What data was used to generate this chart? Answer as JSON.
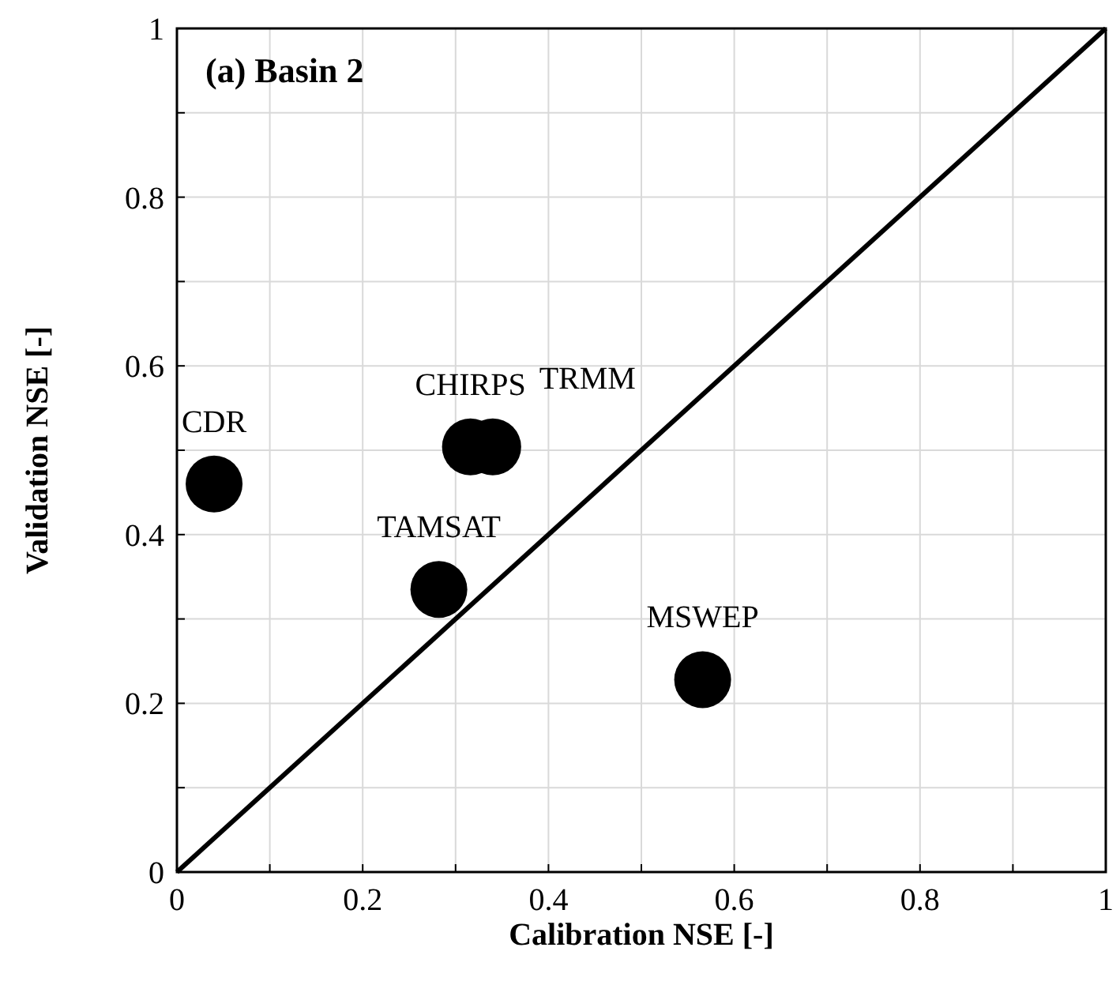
{
  "chart_data": {
    "type": "scatter",
    "title": "(a) Basin 2",
    "xlabel": "Calibration NSE [-]",
    "ylabel": "Validation NSE [-]",
    "xlim": [
      0,
      1
    ],
    "ylim": [
      0,
      1
    ],
    "xticks": [
      0,
      {
        "value": 0.1,
        "label": null
      },
      0.2,
      {
        "value": 0.3,
        "label": null
      },
      0.4,
      {
        "value": 0.5,
        "label": null
      },
      0.6,
      {
        "value": 0.7,
        "label": null
      },
      0.8,
      {
        "value": 0.9,
        "label": null
      },
      1
    ],
    "yticks": [
      0,
      {
        "value": 0.1,
        "label": null
      },
      0.2,
      {
        "value": 0.3,
        "label": null
      },
      0.4,
      {
        "value": 0.5,
        "label": null
      },
      0.6,
      {
        "value": 0.7,
        "label": null
      },
      0.8,
      {
        "value": 0.9,
        "label": null
      },
      1
    ],
    "grid": true,
    "series": [
      {
        "color": "#000000",
        "marker": "circle",
        "x": [
          0.04,
          0.316,
          0.34,
          0.282,
          0.566
        ],
        "values": [
          0.46,
          0.504,
          0.504,
          0.335,
          0.228
        ]
      },
      {
        "type": "line",
        "color": "#000000",
        "line_style": "solid",
        "x": [
          0,
          1
        ],
        "values": [
          0,
          1
        ]
      }
    ],
    "annotations": [
      {
        "text": "CDR",
        "x": 0.04,
        "y": 0.46
      },
      {
        "text": "CHIRPS",
        "x": 0.316,
        "y": 0.504
      },
      {
        "text": "TRMM",
        "x": 0.34,
        "y": 0.504
      },
      {
        "text": "TAMSAT",
        "x": 0.282,
        "y": 0.335
      },
      {
        "text": "MSWEP",
        "x": 0.566,
        "y": 0.228
      }
    ]
  }
}
